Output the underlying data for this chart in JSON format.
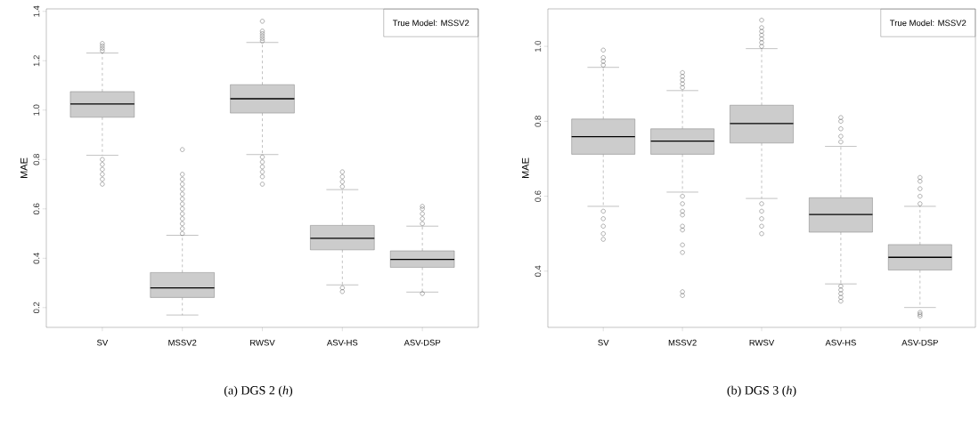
{
  "chart_data": [
    {
      "type": "box",
      "ylabel": "MAE",
      "categories": [
        "SV",
        "MSSV2",
        "RWSV",
        "ASV-HS",
        "ASV-DSP"
      ],
      "ylim": [
        0.12,
        1.41
      ],
      "yticks": [
        {
          "value": 0.2,
          "label": "0.2"
        },
        {
          "value": 0.4,
          "label": "0.4"
        },
        {
          "value": 0.6,
          "label": "0.6"
        },
        {
          "value": 0.8,
          "label": "0.8"
        },
        {
          "value": 1.0,
          "label": "1.0"
        },
        {
          "value": 1.2,
          "label": "1.2"
        },
        {
          "value": 1.4,
          "label": "1.4"
        }
      ],
      "legend_title": "True Model: MSSV2",
      "annotations": [
        "(a) DGS 2 (*h*)"
      ],
      "series": [
        {
          "color": "#cccccc",
          "boxes": [
            {
              "low": 0.817,
              "q1": 0.971,
              "median": 1.025,
              "q3": 1.075,
              "high": 1.231,
              "outliers": [
                1.27,
                1.26,
                1.25,
                1.24,
                0.8,
                0.78,
                0.76,
                0.74,
                0.72,
                0.7
              ]
            },
            {
              "low": 0.17,
              "q1": 0.241,
              "median": 0.28,
              "q3": 0.342,
              "high": 0.493,
              "outliers": [
                0.84,
                0.74,
                0.72,
                0.7,
                0.68,
                0.66,
                0.64,
                0.62,
                0.6,
                0.58,
                0.56,
                0.54,
                0.52,
                0.5
              ]
            },
            {
              "low": 0.82,
              "q1": 0.988,
              "median": 1.046,
              "q3": 1.103,
              "high": 1.274,
              "outliers": [
                1.36,
                1.32,
                1.31,
                1.3,
                1.29,
                1.28,
                0.81,
                0.79,
                0.77,
                0.75,
                0.73,
                0.7
              ]
            },
            {
              "low": 0.292,
              "q1": 0.434,
              "median": 0.481,
              "q3": 0.533,
              "high": 0.678,
              "outliers": [
                0.75,
                0.73,
                0.71,
                0.69,
                0.28,
                0.265
              ]
            },
            {
              "low": 0.263,
              "q1": 0.363,
              "median": 0.395,
              "q3": 0.43,
              "high": 0.53,
              "outliers": [
                0.61,
                0.6,
                0.58,
                0.56,
                0.54,
                0.257
              ]
            }
          ]
        }
      ]
    },
    {
      "type": "box",
      "ylabel": "MAE",
      "categories": [
        "SV",
        "MSSV2",
        "RWSV",
        "ASV-HS",
        "ASV-DSP"
      ],
      "ylim": [
        0.25,
        1.1
      ],
      "yticks": [
        {
          "value": 0.4,
          "label": "0.4"
        },
        {
          "value": 0.6,
          "label": "0.6"
        },
        {
          "value": 0.8,
          "label": "0.8"
        },
        {
          "value": 1.0,
          "label": "1.0"
        }
      ],
      "legend_title": "True Model: MSSV2",
      "annotations": [
        "(b) DGS 3 (*h*)"
      ],
      "series": [
        {
          "color": "#cccccc",
          "boxes": [
            {
              "low": 0.573,
              "q1": 0.712,
              "median": 0.759,
              "q3": 0.806,
              "high": 0.944,
              "outliers": [
                0.99,
                0.97,
                0.96,
                0.95,
                0.56,
                0.54,
                0.52,
                0.5,
                0.485
              ]
            },
            {
              "low": 0.611,
              "q1": 0.712,
              "median": 0.747,
              "q3": 0.78,
              "high": 0.882,
              "outliers": [
                0.93,
                0.92,
                0.91,
                0.9,
                0.89,
                0.6,
                0.58,
                0.56,
                0.55,
                0.52,
                0.51,
                0.47,
                0.45,
                0.345,
                0.335
              ]
            },
            {
              "low": 0.594,
              "q1": 0.742,
              "median": 0.794,
              "q3": 0.843,
              "high": 0.994,
              "outliers": [
                1.07,
                1.05,
                1.04,
                1.03,
                1.02,
                1.01,
                1.0,
                0.58,
                0.56,
                0.54,
                0.52,
                0.5
              ]
            },
            {
              "low": 0.366,
              "q1": 0.504,
              "median": 0.551,
              "q3": 0.596,
              "high": 0.733,
              "outliers": [
                0.81,
                0.8,
                0.78,
                0.76,
                0.745,
                0.36,
                0.35,
                0.34,
                0.33,
                0.32
              ]
            },
            {
              "low": 0.303,
              "q1": 0.403,
              "median": 0.437,
              "q3": 0.471,
              "high": 0.573,
              "outliers": [
                0.65,
                0.64,
                0.62,
                0.6,
                0.58,
                0.29,
                0.285,
                0.28
              ]
            }
          ]
        }
      ]
    }
  ]
}
